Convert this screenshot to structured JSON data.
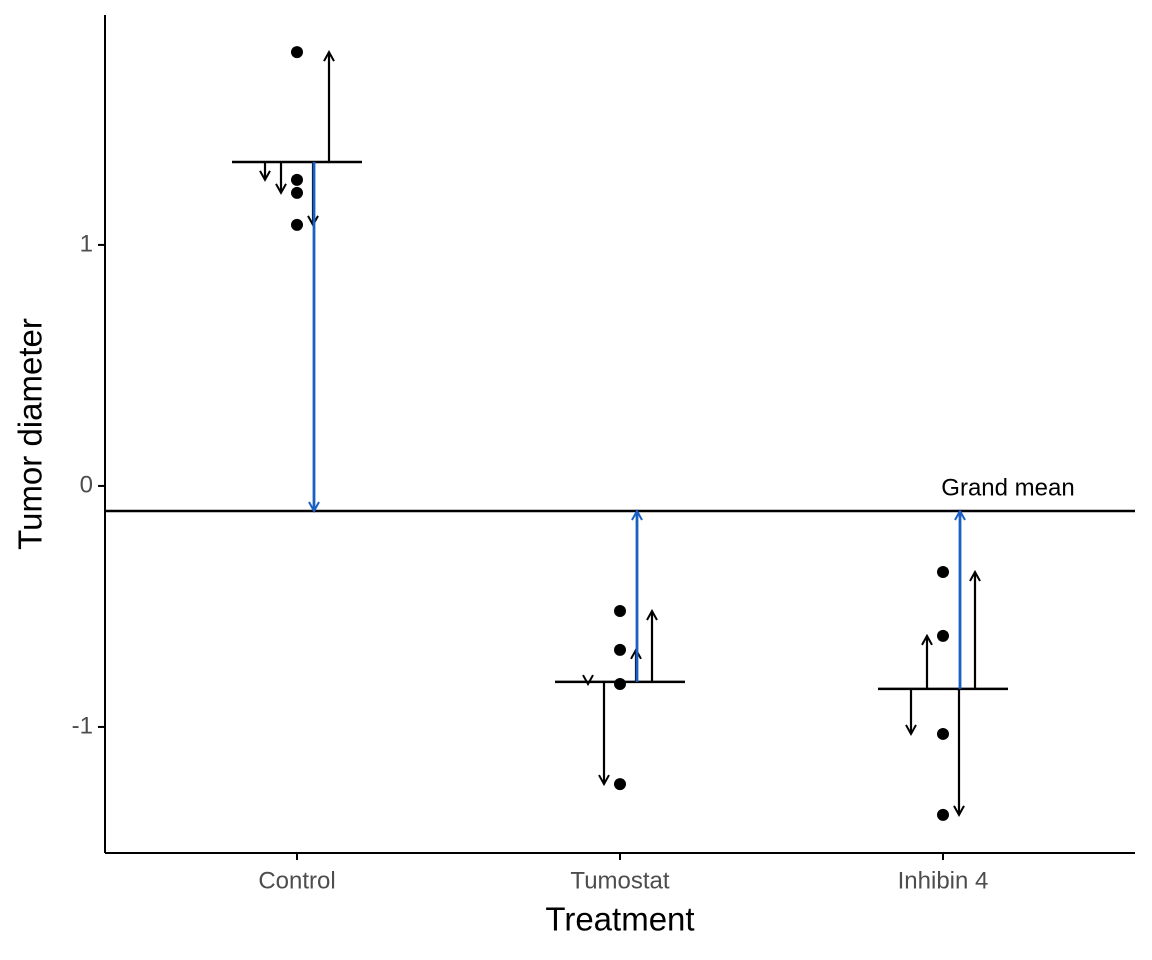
{
  "chart_data": {
    "type": "deviation-dotplot",
    "x_label": "Treatment",
    "y_label": "Tumor diameter",
    "categories": [
      "Control",
      "Tumostat",
      "Inhibin 4"
    ],
    "observations": [
      [
        1.27,
        1.216,
        1.083,
        1.8
      ],
      [
        -0.822,
        -1.237,
        -0.68,
        -0.519
      ],
      [
        -1.029,
        -0.622,
        -1.365,
        -0.357
      ]
    ],
    "group_means": [
      1.344,
      -0.813,
      -0.842
    ],
    "grand_mean": -0.104,
    "annotation": "Grand mean",
    "ylim": [
      -1.523,
      1.954
    ],
    "yticks": [
      -1,
      0,
      1
    ],
    "point_color": "#000000",
    "arrow_color": "#000000",
    "mean_arrow_color": "#1a5fc2"
  }
}
